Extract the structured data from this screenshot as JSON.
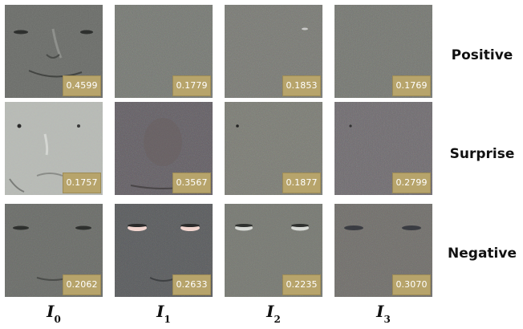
{
  "rows": [
    {
      "label": "Positive",
      "values": [
        "0.4599",
        "0.1779",
        "0.1853",
        "0.1769"
      ]
    },
    {
      "label": "Surprise",
      "values": [
        "0.1757",
        "0.3567",
        "0.1877",
        "0.2799"
      ]
    },
    {
      "label": "Negative",
      "values": [
        "0.2062",
        "0.2633",
        "0.2235",
        "0.3070"
      ]
    }
  ],
  "columns": [
    {
      "symbol": "I",
      "subscript": "0"
    },
    {
      "symbol": "I",
      "subscript": "1"
    },
    {
      "symbol": "I",
      "subscript": "2"
    },
    {
      "symbol": "I",
      "subscript": "3"
    }
  ],
  "colors": {
    "badge": "#b7a46b",
    "label": "#111111",
    "background": "#ffffff"
  }
}
